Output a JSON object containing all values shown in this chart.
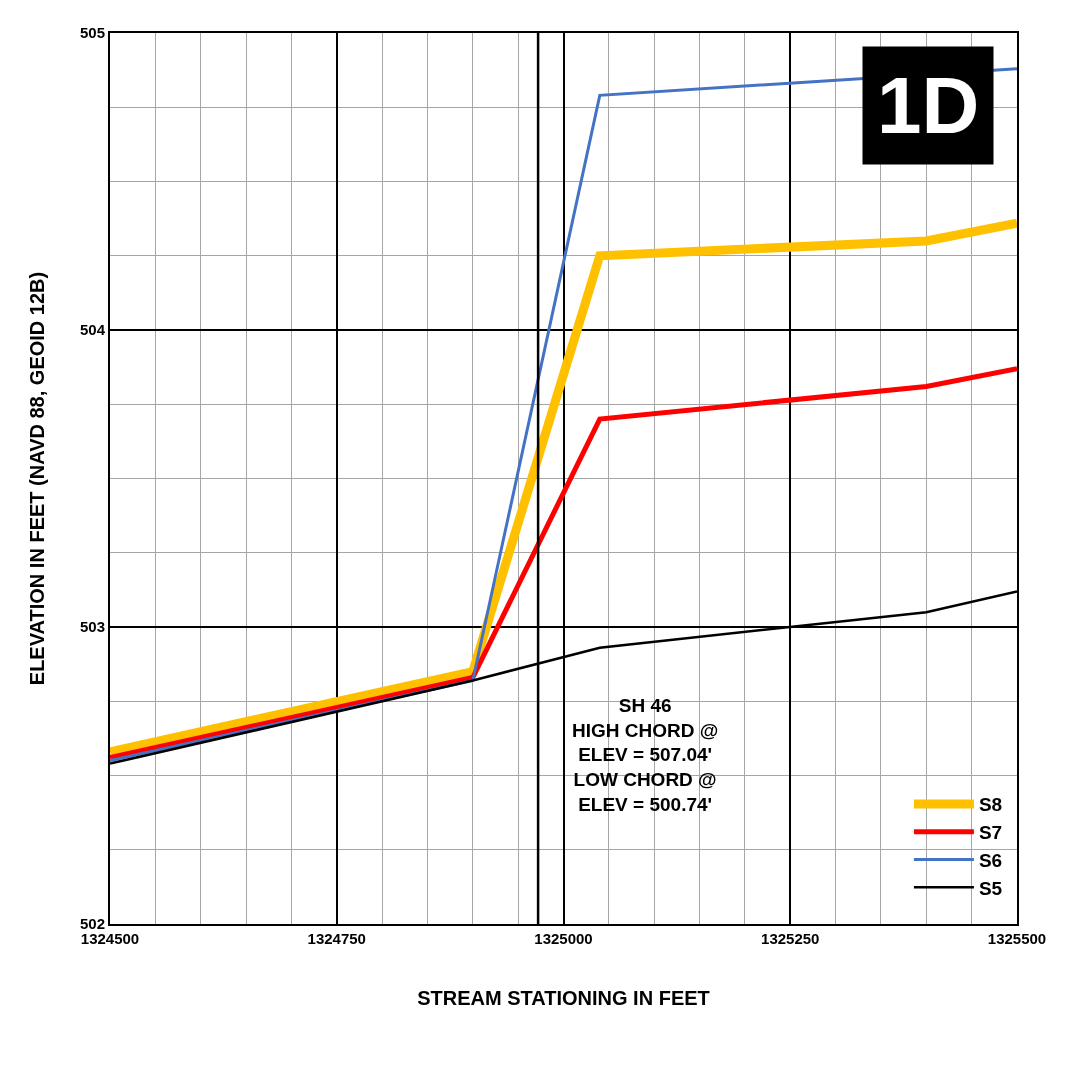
{
  "chart_data": {
    "type": "line",
    "xlabel": "STREAM STATIONING IN FEET",
    "ylabel": "ELEVATION IN FEET (NAVD 88, GEOID 12B)",
    "x": [
      1324500,
      1324900,
      1325040,
      1325400,
      1325500
    ],
    "series": [
      {
        "name": "S8",
        "color": "#ffc000",
        "values": [
          502.58,
          502.85,
          504.25,
          504.3,
          504.36
        ]
      },
      {
        "name": "S7",
        "color": "#ff0000",
        "values": [
          502.56,
          502.83,
          503.7,
          503.81,
          503.87
        ]
      },
      {
        "name": "S6",
        "color": "#4472c4",
        "x": [
          1324500,
          1324900,
          1325040,
          1325500
        ],
        "values": [
          502.55,
          502.82,
          504.79,
          504.88
        ]
      },
      {
        "name": "S5",
        "color": "#000000",
        "values": [
          502.54,
          502.82,
          502.93,
          503.05,
          503.12
        ]
      }
    ],
    "xlim": [
      1324500,
      1325500
    ],
    "xticks": [
      1324500,
      1324750,
      1325000,
      1325250,
      1325500
    ],
    "ylim": [
      502,
      505
    ],
    "yticks": [
      502,
      503,
      504,
      505
    ],
    "ref_lines": [
      {
        "axis": "x",
        "value": 1324972,
        "color": "#000000"
      }
    ],
    "annotations": [
      "SH 46\nHIGH CHORD @\nELEV = 507.04'\nLOW CHORD @\nELEV = 500.74'",
      "1D"
    ],
    "grid": true,
    "legend": "bottom right",
    "marker": "none",
    "line_style": "solid"
  }
}
